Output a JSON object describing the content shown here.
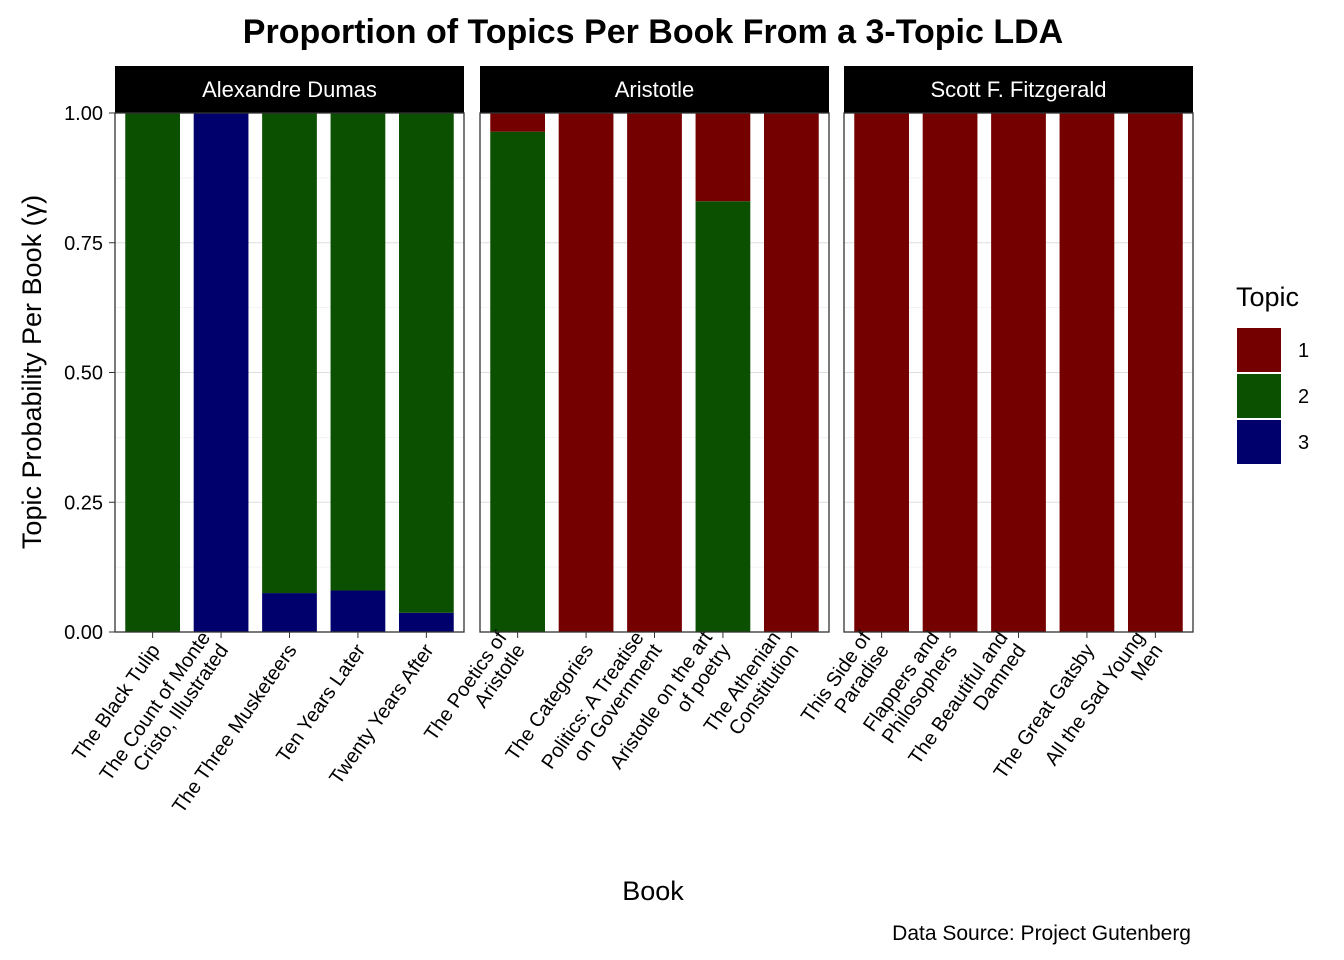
{
  "chart_data": {
    "type": "bar",
    "stacked": true,
    "title": "Proportion of Topics Per Book From a 3-Topic LDA",
    "xlabel": "Book",
    "ylabel": "Topic Probability Per Book (γ)",
    "caption": "Data Source: Project Gutenberg",
    "ylim": [
      0,
      1
    ],
    "yticks": [
      "0.00",
      "0.25",
      "0.50",
      "0.75",
      "1.00"
    ],
    "ytick_values": [
      0,
      0.25,
      0.5,
      0.75,
      1.0
    ],
    "legend": {
      "title": "Topic",
      "position": "right",
      "entries": [
        {
          "label": "1",
          "color": "#750000"
        },
        {
          "label": "2",
          "color": "#0b5000"
        },
        {
          "label": "3",
          "color": "#00006c"
        }
      ]
    },
    "panels": [
      {
        "label": "Alexandre Dumas",
        "books": [
          {
            "lines": [
              "The Black Tulip"
            ],
            "values": {
              "1": 0,
              "2": 1.0,
              "3": 0
            }
          },
          {
            "lines": [
              "The Count of Monte",
              "Cristo, Illustrated"
            ],
            "values": {
              "1": 0,
              "2": 0,
              "3": 1.0
            }
          },
          {
            "lines": [
              "The Three Musketeers"
            ],
            "values": {
              "1": 0,
              "2": 0.925,
              "3": 0.075
            }
          },
          {
            "lines": [
              "Ten Years Later"
            ],
            "values": {
              "1": 0,
              "2": 0.92,
              "3": 0.08
            }
          },
          {
            "lines": [
              "Twenty Years After"
            ],
            "values": {
              "1": 0,
              "2": 0.963,
              "3": 0.037
            }
          }
        ]
      },
      {
        "label": "Aristotle",
        "books": [
          {
            "lines": [
              "The Poetics of",
              "Aristotle"
            ],
            "values": {
              "1": 0.036,
              "2": 0.964,
              "3": 0
            }
          },
          {
            "lines": [
              "The Categories"
            ],
            "values": {
              "1": 1.0,
              "2": 0,
              "3": 0
            }
          },
          {
            "lines": [
              "Politics: A Treatise",
              "on Government"
            ],
            "values": {
              "1": 1.0,
              "2": 0,
              "3": 0
            }
          },
          {
            "lines": [
              "Aristotle on the art",
              "of poetry"
            ],
            "values": {
              "1": 0.17,
              "2": 0.83,
              "3": 0
            }
          },
          {
            "lines": [
              "The Athenian",
              "Constitution"
            ],
            "values": {
              "1": 1.0,
              "2": 0,
              "3": 0
            }
          }
        ]
      },
      {
        "label": "Scott F. Fitzgerald",
        "books": [
          {
            "lines": [
              "This Side of",
              "Paradise"
            ],
            "values": {
              "1": 1.0,
              "2": 0,
              "3": 0
            }
          },
          {
            "lines": [
              "Flappers and",
              "Philosophers"
            ],
            "values": {
              "1": 1.0,
              "2": 0,
              "3": 0
            }
          },
          {
            "lines": [
              "The Beautiful and",
              "Damned"
            ],
            "values": {
              "1": 1.0,
              "2": 0,
              "3": 0
            }
          },
          {
            "lines": [
              "The Great Gatsby"
            ],
            "values": {
              "1": 1.0,
              "2": 0,
              "3": 0
            }
          },
          {
            "lines": [
              "All the Sad Young",
              "Men"
            ],
            "values": {
              "1": 1.0,
              "2": 0,
              "3": 0
            }
          }
        ]
      }
    ]
  }
}
